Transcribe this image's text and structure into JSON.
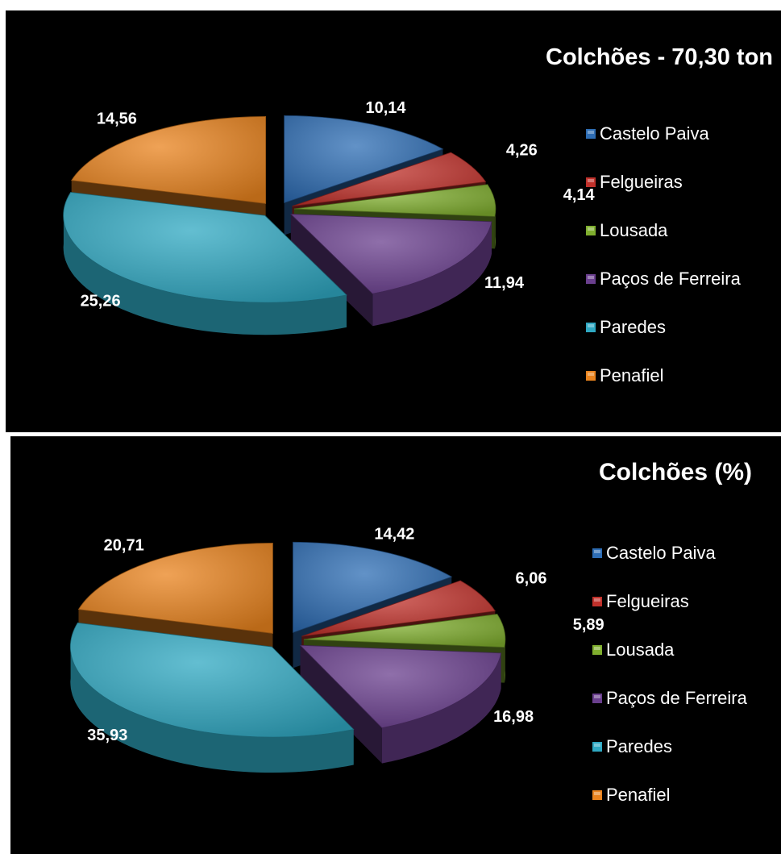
{
  "chart_data": [
    {
      "type": "pie",
      "title": "Colchões - 70,30 ton",
      "categories": [
        "Castelo Paiva",
        "Felgueiras",
        "Lousada",
        "Paços de Ferreira",
        "Paredes",
        "Penafiel"
      ],
      "values": [
        10.14,
        4.26,
        4.14,
        11.94,
        25.26,
        14.56
      ],
      "value_labels": [
        "10,14",
        "4,26",
        "4,14",
        "11,94",
        "25,26",
        "14,56"
      ],
      "colors": [
        "#2E6DB4",
        "#C0312B",
        "#7FAE2E",
        "#6A3F8E",
        "#2FA8C2",
        "#E9831E"
      ],
      "legend": "right",
      "style": "3d-exploded"
    },
    {
      "type": "pie",
      "title": "Colchões (%)",
      "categories": [
        "Castelo Paiva",
        "Felgueiras",
        "Lousada",
        "Paços de Ferreira",
        "Paredes",
        "Penafiel"
      ],
      "values": [
        14.42,
        6.06,
        5.89,
        16.98,
        35.93,
        20.71
      ],
      "value_labels": [
        "14,42",
        "6,06",
        "5,89",
        "16,98",
        "35,93",
        "20,71"
      ],
      "colors": [
        "#2E6DB4",
        "#C0312B",
        "#7FAE2E",
        "#6A3F8E",
        "#2FA8C2",
        "#E9831E"
      ],
      "legend": "right",
      "style": "3d-exploded"
    }
  ]
}
